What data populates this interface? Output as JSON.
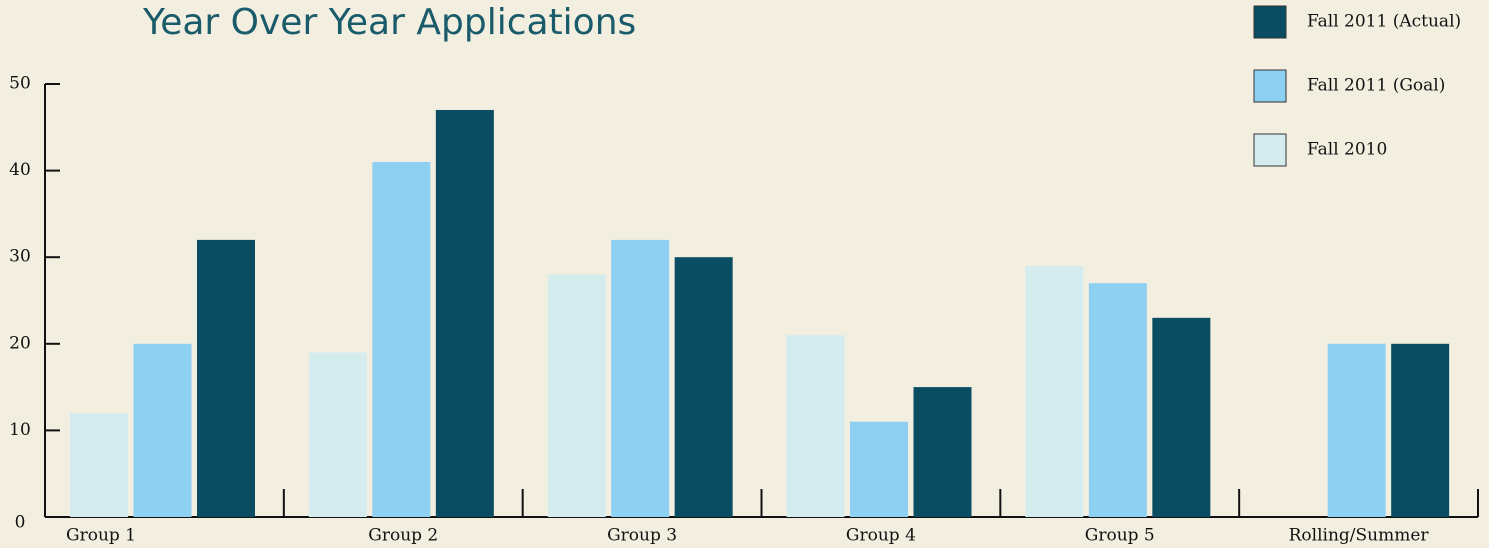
{
  "chart_data": {
    "type": "bar",
    "title": "Year Over Year Applications",
    "categories": [
      "Group 1",
      "Group 2",
      "Group 3",
      "Group 4",
      "Group 5",
      "Rolling/Summer"
    ],
    "series": [
      {
        "name": "Fall 2011 (Actual)",
        "color": "#0a4d63",
        "values": [
          32,
          47,
          30,
          15,
          23,
          20
        ]
      },
      {
        "name": "Fall 2011 (Goal)",
        "color": "#8dd0f2",
        "values": [
          20,
          41,
          32,
          11,
          27,
          20
        ]
      },
      {
        "name": "Fall 2010",
        "color": "#d5ecef",
        "values": [
          12,
          19,
          28,
          21,
          29,
          null
        ]
      }
    ],
    "ylim": [
      0,
      50
    ],
    "yticks": [
      0,
      10,
      20,
      30,
      40,
      50
    ],
    "legend": "top-right"
  }
}
